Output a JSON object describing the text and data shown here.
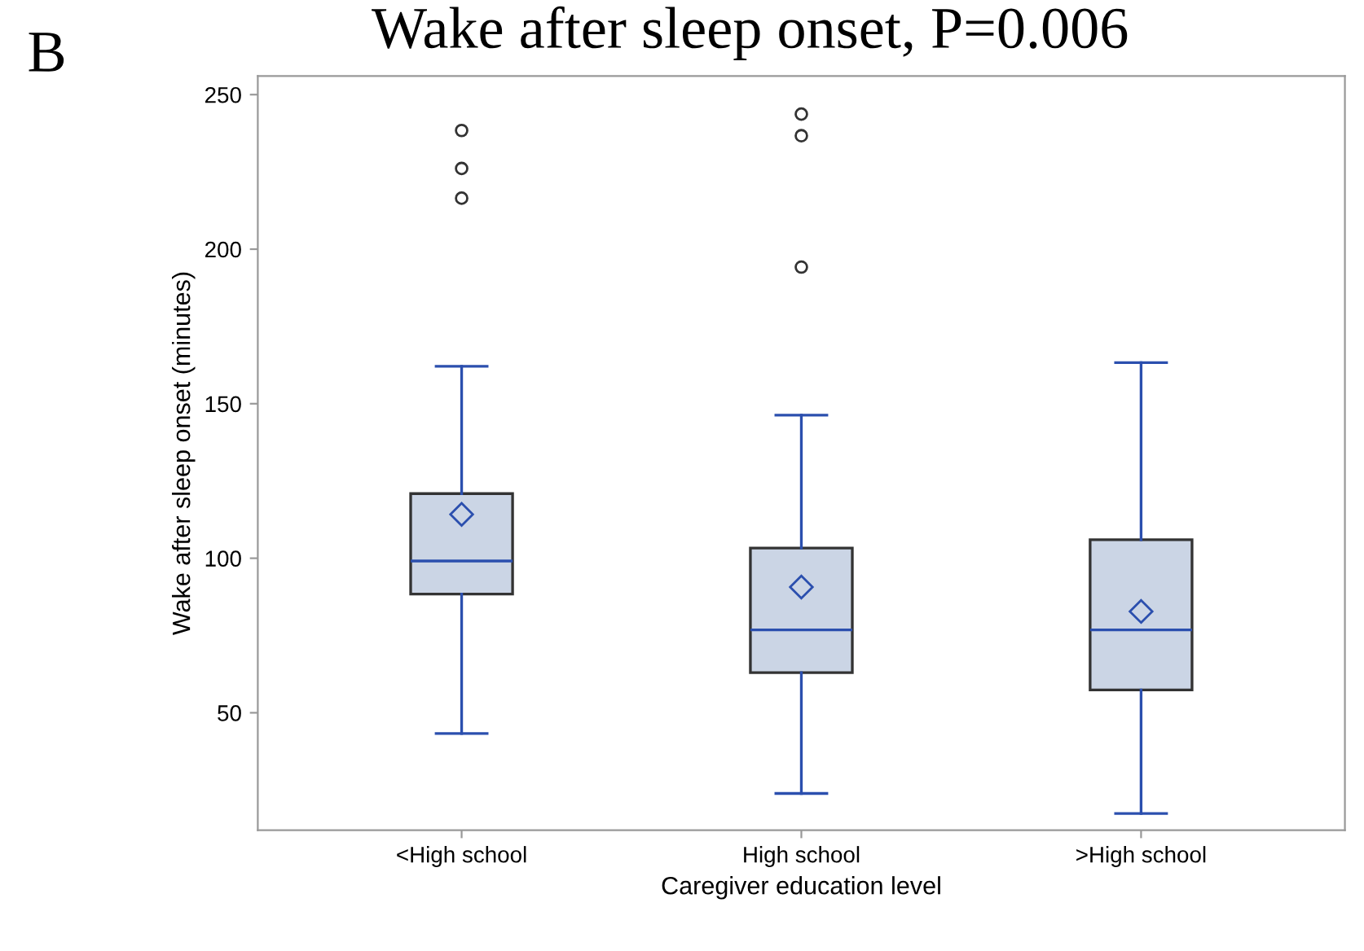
{
  "chart_data": {
    "type": "box",
    "title": "Wake after sleep onset, P=0.006",
    "xlabel": "Caregiver education level",
    "ylabel": "Wake after sleep onset (minutes)",
    "annotations": [
      "B"
    ],
    "categories": [
      "<High school",
      "High school",
      ">High school"
    ],
    "color": "#cbd5e5",
    "boxes": [
      {
        "low": 43.3,
        "q1": 88.4,
        "median": 99.1,
        "q3": 120.9,
        "high": 162.1,
        "mean": 114.2,
        "outliers": [
          216.5,
          226.1,
          238.4
        ]
      },
      {
        "low": 23.9,
        "q1": 63.0,
        "median": 76.8,
        "q3": 103.3,
        "high": 146.3,
        "mean": 90.7,
        "outliers": [
          194.2,
          236.7,
          243.7
        ]
      },
      {
        "low": 17.4,
        "q1": 57.4,
        "median": 76.8,
        "q3": 106.0,
        "high": 163.3,
        "mean": 82.8
      }
    ],
    "ylim": [
      12,
      256
    ],
    "yticks": [
      50,
      100,
      150,
      200,
      250
    ]
  }
}
